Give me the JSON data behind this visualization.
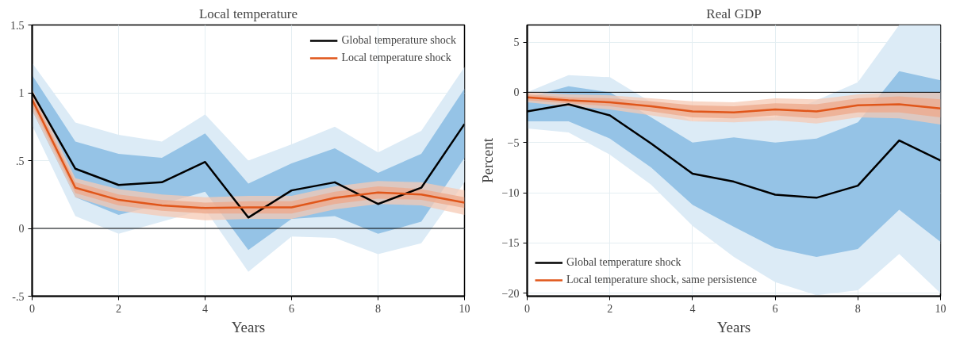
{
  "chart_data": [
    {
      "type": "line",
      "title": "Local temperature",
      "xlabel": "Years",
      "x": [
        0,
        1,
        2,
        3,
        4,
        5,
        6,
        7,
        8,
        9,
        10
      ],
      "xlim": [
        0,
        10
      ],
      "xticks": [
        0,
        2,
        4,
        6,
        8,
        10
      ],
      "ylim": [
        -0.5,
        1.5
      ],
      "yticks": [
        {
          "value": -0.5,
          "label": "-.5"
        },
        0,
        {
          "value": 0.5,
          "label": ".5"
        },
        1,
        1.5
      ],
      "grid": true,
      "legend": "top right",
      "ref_lines": [
        {
          "axis": "y",
          "value": 0,
          "color": "#000000"
        }
      ],
      "series": [
        {
          "type": "area",
          "color": "#dcebf6",
          "values": [
            null,
            null,
            null,
            null,
            null,
            null,
            null,
            null,
            null,
            null,
            null
          ],
          "lower": [
            0.76,
            0.09,
            -0.04,
            0.05,
            0.14,
            -0.32,
            -0.06,
            -0.07,
            -0.19,
            -0.11,
            0.34
          ],
          "upper": [
            1.22,
            0.78,
            0.69,
            0.64,
            0.84,
            0.5,
            0.62,
            0.75,
            0.56,
            0.72,
            1.19
          ]
        },
        {
          "type": "area",
          "color": "#95c3e6",
          "values": [
            null,
            null,
            null,
            null,
            null,
            null,
            null,
            null,
            null,
            null,
            null
          ],
          "lower": [
            0.87,
            0.23,
            0.1,
            0.18,
            0.27,
            -0.16,
            0.07,
            0.09,
            -0.04,
            0.05,
            0.52
          ],
          "upper": [
            1.13,
            0.64,
            0.55,
            0.52,
            0.7,
            0.33,
            0.48,
            0.59,
            0.41,
            0.55,
            1.03
          ]
        },
        {
          "type": "area",
          "color": "#f6c9b4",
          "values": [
            null,
            null,
            null,
            null,
            null,
            null,
            null,
            null,
            null,
            null,
            null
          ],
          "lower": [
            0.87,
            0.23,
            0.13,
            0.09,
            0.06,
            0.07,
            0.07,
            0.14,
            0.18,
            0.17,
            0.1
          ],
          "upper": [
            1.03,
            0.37,
            0.29,
            0.25,
            0.23,
            0.24,
            0.24,
            0.31,
            0.35,
            0.34,
            0.28
          ]
        },
        {
          "type": "area",
          "color": "#eea889",
          "values": [
            null,
            null,
            null,
            null,
            null,
            null,
            null,
            null,
            null,
            null,
            null
          ],
          "lower": [
            0.91,
            0.26,
            0.17,
            0.13,
            0.11,
            0.11,
            0.11,
            0.18,
            0.22,
            0.21,
            0.15
          ],
          "upper": [
            0.99,
            0.34,
            0.25,
            0.21,
            0.19,
            0.2,
            0.2,
            0.27,
            0.31,
            0.29,
            0.23
          ]
        },
        {
          "type": "line",
          "name": "Global temperature shock",
          "color": "#000000",
          "values": [
            1.0,
            0.44,
            0.32,
            0.34,
            0.49,
            0.08,
            0.28,
            0.34,
            0.18,
            0.3,
            0.77
          ]
        },
        {
          "type": "line",
          "name": "Local temperature shock",
          "color": "#e0561a",
          "values": [
            0.95,
            0.3,
            0.21,
            0.17,
            0.15,
            0.155,
            0.155,
            0.225,
            0.265,
            0.25,
            0.19
          ]
        }
      ]
    },
    {
      "type": "line",
      "title": "Real GDP",
      "xlabel": "Years",
      "ylabel": "Percent",
      "x": [
        0,
        1,
        2,
        3,
        4,
        5,
        6,
        7,
        8,
        9,
        10
      ],
      "xlim": [
        0,
        10
      ],
      "xticks": [
        0,
        2,
        4,
        6,
        8,
        10
      ],
      "ylim": [
        -20.3,
        6.7
      ],
      "yticks": [
        -20,
        -15,
        -10,
        -5,
        0,
        5
      ],
      "grid": true,
      "legend": "bottom left",
      "ref_lines": [
        {
          "axis": "y",
          "value": 0,
          "color": "#000000"
        }
      ],
      "series": [
        {
          "type": "area",
          "color": "#dcebf6",
          "values": [
            null,
            null,
            null,
            null,
            null,
            null,
            null,
            null,
            null,
            null,
            null
          ],
          "lower": [
            -3.6,
            -4.0,
            -6.2,
            -9.2,
            -13.3,
            -16.4,
            -18.9,
            -20.2,
            -19.7,
            -16.1,
            -20.0
          ],
          "upper": [
            0.0,
            1.7,
            1.5,
            -1.0,
            -2.9,
            -2.5,
            -2.5,
            -0.8,
            1.0,
            6.7,
            6.7
          ]
        },
        {
          "type": "area",
          "color": "#95c3e6",
          "values": [
            null,
            null,
            null,
            null,
            null,
            null,
            null,
            null,
            null,
            null,
            null
          ],
          "lower": [
            -2.9,
            -2.9,
            -4.6,
            -7.5,
            -11.2,
            -13.4,
            -15.5,
            -16.4,
            -15.6,
            -11.7,
            -14.9
          ],
          "upper": [
            -0.5,
            0.6,
            0.0,
            -2.5,
            -5.0,
            -4.5,
            -5.0,
            -4.6,
            -3.0,
            2.1,
            1.2
          ]
        },
        {
          "type": "area",
          "color": "#f6c9b4",
          "values": [
            null,
            null,
            null,
            null,
            null,
            null,
            null,
            null,
            null,
            null,
            null
          ],
          "lower": [
            -1.0,
            -1.4,
            -1.7,
            -2.3,
            -2.9,
            -3.0,
            -2.8,
            -3.1,
            -2.5,
            -2.6,
            -3.2
          ],
          "upper": [
            0.0,
            -0.2,
            -0.3,
            -0.6,
            -0.9,
            -1.0,
            -0.6,
            -0.7,
            -0.2,
            0.0,
            0.0
          ]
        },
        {
          "type": "area",
          "color": "#eea889",
          "values": [
            null,
            null,
            null,
            null,
            null,
            null,
            null,
            null,
            null,
            null,
            null
          ],
          "lower": [
            -0.8,
            -1.1,
            -1.4,
            -1.9,
            -2.5,
            -2.6,
            -2.3,
            -2.6,
            -2.0,
            -2.0,
            -2.5
          ],
          "upper": [
            -0.2,
            -0.5,
            -0.6,
            -0.9,
            -1.3,
            -1.4,
            -1.1,
            -1.2,
            -0.6,
            -0.4,
            -0.7
          ]
        },
        {
          "type": "line",
          "name": "Global temperature shock",
          "color": "#000000",
          "values": [
            -1.9,
            -1.2,
            -2.3,
            -5.1,
            -8.1,
            -8.9,
            -10.2,
            -10.5,
            -9.3,
            -4.8,
            -6.8
          ]
        },
        {
          "type": "line",
          "name": "Local temperature shock, same persistence",
          "color": "#e0561a",
          "values": [
            -0.5,
            -0.8,
            -1.0,
            -1.4,
            -1.9,
            -2.0,
            -1.7,
            -1.9,
            -1.3,
            -1.2,
            -1.6
          ]
        }
      ]
    }
  ]
}
